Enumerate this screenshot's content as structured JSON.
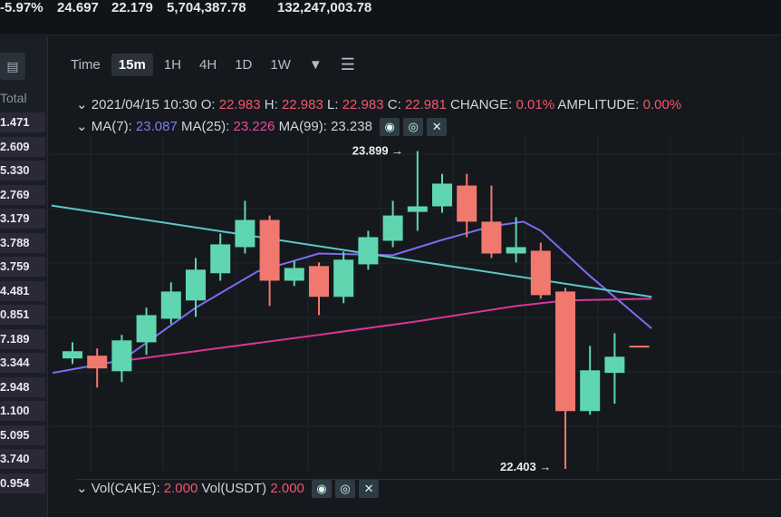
{
  "ticker": {
    "change_pct": "-5.97%",
    "high": "24.697",
    "low": "22.179",
    "vol_base": "5,704,387.78",
    "vol_quote": "132,247,003.78"
  },
  "sidebar": {
    "header": "Total",
    "values": [
      "1.471",
      "2.609",
      "5.330",
      "2.769",
      "3.179",
      "3.788",
      "3.759",
      "4.481",
      "0.851",
      "7.189",
      "3.344",
      "2.948",
      "1.100",
      "5.095",
      "3.740",
      "0.954"
    ]
  },
  "toolbar": {
    "items": [
      "Time",
      "15m",
      "1H",
      "4H",
      "1D",
      "1W"
    ],
    "active": "15m",
    "more_icon": "caret-down-icon",
    "settings_icon": "sliders-icon"
  },
  "ohlc": {
    "date": "2021/04/15 10:30",
    "o_label": "O:",
    "o": "22.983",
    "h_label": "H:",
    "h": "22.983",
    "l_label": "L:",
    "l": "22.983",
    "c_label": "C:",
    "c": "22.981",
    "change_label": "CHANGE:",
    "change": "0.01%",
    "amp_label": "AMPLITUDE:",
    "amp": "0.00%"
  },
  "ma": {
    "ma7_label": "MA(7):",
    "ma7": "23.087",
    "ma25_label": "MA(25):",
    "ma25": "23.226",
    "ma99_label": "MA(99):",
    "ma99": "23.238"
  },
  "vol": {
    "base_label": "Vol(CAKE):",
    "base": "2.000",
    "quote_label": "Vol(USDT)",
    "quote": "2.000"
  },
  "colors": {
    "up": "#5fd6b0",
    "down": "#f0786e",
    "ma7": "#7c6cf0",
    "ma25": "#d9359a",
    "ma99": "#5cc8c8",
    "background": "#15191d"
  },
  "chart_data": {
    "type": "candlestick",
    "ylim": [
      22.39,
      23.97
    ],
    "grid": true,
    "annotations": [
      {
        "label": "23.899",
        "candle": 14,
        "price": 23.899
      },
      {
        "label": "22.403",
        "candle": 20,
        "price": 22.403
      }
    ],
    "candles": [
      {
        "o": 22.923,
        "h": 22.999,
        "l": 22.897,
        "c": 22.957
      },
      {
        "o": 22.936,
        "h": 22.97,
        "l": 22.786,
        "c": 22.876
      },
      {
        "o": 22.863,
        "h": 23.034,
        "l": 22.812,
        "c": 23.008
      },
      {
        "o": 22.999,
        "h": 23.162,
        "l": 22.94,
        "c": 23.127
      },
      {
        "o": 23.11,
        "h": 23.281,
        "l": 23.085,
        "c": 23.238
      },
      {
        "o": 23.196,
        "h": 23.396,
        "l": 23.119,
        "c": 23.341
      },
      {
        "o": 23.324,
        "h": 23.511,
        "l": 23.289,
        "c": 23.46
      },
      {
        "o": 23.447,
        "h": 23.665,
        "l": 23.417,
        "c": 23.575
      },
      {
        "o": 23.575,
        "h": 23.596,
        "l": 23.17,
        "c": 23.289
      },
      {
        "o": 23.289,
        "h": 23.383,
        "l": 23.264,
        "c": 23.349
      },
      {
        "o": 23.358,
        "h": 23.375,
        "l": 23.127,
        "c": 23.213
      },
      {
        "o": 23.213,
        "h": 23.426,
        "l": 23.183,
        "c": 23.388
      },
      {
        "o": 23.366,
        "h": 23.524,
        "l": 23.341,
        "c": 23.494
      },
      {
        "o": 23.477,
        "h": 23.665,
        "l": 23.447,
        "c": 23.596
      },
      {
        "o": 23.613,
        "h": 23.899,
        "l": 23.524,
        "c": 23.639
      },
      {
        "o": 23.639,
        "h": 23.792,
        "l": 23.609,
        "c": 23.746
      },
      {
        "o": 23.737,
        "h": 23.792,
        "l": 23.494,
        "c": 23.567
      },
      {
        "o": 23.567,
        "h": 23.737,
        "l": 23.396,
        "c": 23.417
      },
      {
        "o": 23.417,
        "h": 23.588,
        "l": 23.375,
        "c": 23.447
      },
      {
        "o": 23.43,
        "h": 23.468,
        "l": 23.204,
        "c": 23.221
      },
      {
        "o": 23.238,
        "h": 23.255,
        "l": 22.403,
        "c": 22.675
      },
      {
        "o": 22.675,
        "h": 22.982,
        "l": 22.658,
        "c": 22.867
      },
      {
        "o": 22.855,
        "h": 23.042,
        "l": 22.71,
        "c": 22.931
      },
      {
        "o": 22.983,
        "h": 22.983,
        "l": 22.983,
        "c": 22.981
      }
    ],
    "series": [
      {
        "name": "MA(7)",
        "points": [
          [
            -0.8,
            22.855
          ],
          [
            2,
            22.914
          ],
          [
            5,
            23.162
          ],
          [
            7.5,
            23.332
          ],
          [
            10,
            23.417
          ],
          [
            13,
            23.409
          ],
          [
            15,
            23.481
          ],
          [
            17,
            23.545
          ],
          [
            18.3,
            23.567
          ],
          [
            19,
            23.524
          ],
          [
            21,
            23.311
          ],
          [
            23.5,
            23.064
          ]
        ]
      },
      {
        "name": "MA(25)",
        "points": [
          [
            2.2,
            22.914
          ],
          [
            5,
            22.957
          ],
          [
            10,
            23.034
          ],
          [
            14,
            23.098
          ],
          [
            18,
            23.17
          ],
          [
            20,
            23.196
          ],
          [
            23.5,
            23.204
          ]
        ]
      },
      {
        "name": "MA(99)",
        "points": [
          [
            -0.85,
            23.643
          ],
          [
            23.5,
            23.213
          ]
        ]
      }
    ]
  }
}
